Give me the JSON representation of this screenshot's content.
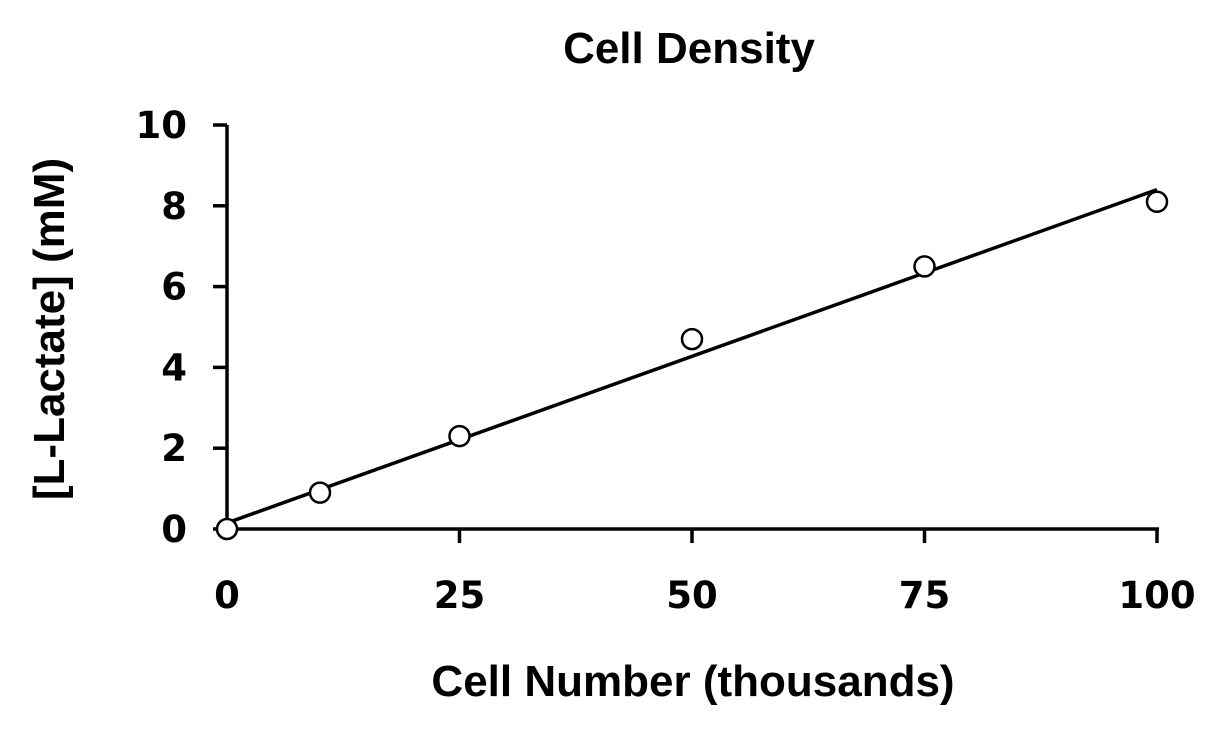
{
  "chart_data": {
    "type": "scatter",
    "title": "Cell Density",
    "xlabel": "Cell Number (thousands)",
    "ylabel": "[L-Lactate] (mM)",
    "xlim": [
      0,
      100
    ],
    "ylim": [
      0,
      10
    ],
    "xticks": [
      0,
      25,
      50,
      75,
      100
    ],
    "yticks": [
      0,
      2,
      4,
      6,
      8,
      10
    ],
    "x": [
      0,
      10,
      25,
      50,
      75,
      100
    ],
    "y": [
      0,
      0.9,
      2.3,
      4.7,
      6.5,
      8.1
    ],
    "marker": "open-circle",
    "trendline": {
      "type": "linear",
      "x": [
        0,
        100
      ],
      "y": [
        0.15,
        8.4
      ]
    },
    "grid": false,
    "legend": "none",
    "colors": {
      "line": "#000000",
      "marker_fill": "#ffffff",
      "marker_stroke": "#000000"
    }
  }
}
